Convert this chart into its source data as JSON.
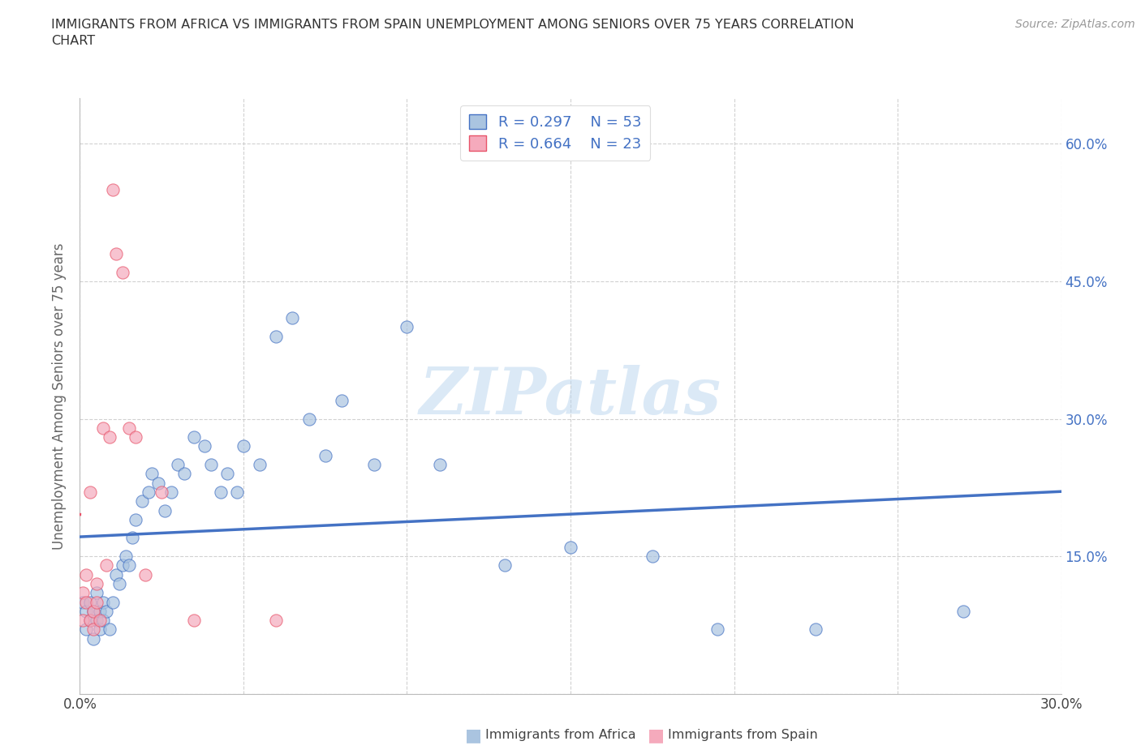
{
  "title": "IMMIGRANTS FROM AFRICA VS IMMIGRANTS FROM SPAIN UNEMPLOYMENT AMONG SENIORS OVER 75 YEARS CORRELATION\nCHART",
  "source_text": "Source: ZipAtlas.com",
  "ylabel": "Unemployment Among Seniors over 75 years",
  "xlim": [
    0.0,
    0.3
  ],
  "ylim": [
    0.0,
    0.65
  ],
  "xticks": [
    0.0,
    0.05,
    0.1,
    0.15,
    0.2,
    0.25,
    0.3
  ],
  "yticks": [
    0.0,
    0.15,
    0.3,
    0.45,
    0.6
  ],
  "xticklabels": [
    "0.0%",
    "",
    "",
    "",
    "",
    "",
    "30.0%"
  ],
  "yticklabels_right": [
    "",
    "15.0%",
    "30.0%",
    "45.0%",
    "60.0%"
  ],
  "watermark": "ZIPatlas",
  "legend_r1": "R = 0.297",
  "legend_n1": "N = 53",
  "legend_r2": "R = 0.664",
  "legend_n2": "N = 23",
  "color_africa": "#aac4e0",
  "color_spain": "#f5aabc",
  "color_africa_line": "#4472c4",
  "color_spain_line": "#e8546a",
  "africa_x": [
    0.001,
    0.002,
    0.002,
    0.003,
    0.003,
    0.004,
    0.004,
    0.005,
    0.005,
    0.006,
    0.006,
    0.007,
    0.007,
    0.008,
    0.009,
    0.01,
    0.011,
    0.012,
    0.013,
    0.014,
    0.015,
    0.016,
    0.017,
    0.019,
    0.021,
    0.022,
    0.024,
    0.026,
    0.028,
    0.03,
    0.032,
    0.035,
    0.038,
    0.04,
    0.043,
    0.045,
    0.048,
    0.05,
    0.055,
    0.06,
    0.065,
    0.07,
    0.075,
    0.08,
    0.09,
    0.1,
    0.11,
    0.13,
    0.15,
    0.175,
    0.195,
    0.225,
    0.27
  ],
  "africa_y": [
    0.1,
    0.09,
    0.07,
    0.08,
    0.1,
    0.06,
    0.09,
    0.08,
    0.11,
    0.09,
    0.07,
    0.1,
    0.08,
    0.09,
    0.07,
    0.1,
    0.13,
    0.12,
    0.14,
    0.15,
    0.14,
    0.17,
    0.19,
    0.21,
    0.22,
    0.24,
    0.23,
    0.2,
    0.22,
    0.25,
    0.24,
    0.28,
    0.27,
    0.25,
    0.22,
    0.24,
    0.22,
    0.27,
    0.25,
    0.39,
    0.41,
    0.3,
    0.26,
    0.32,
    0.25,
    0.4,
    0.25,
    0.14,
    0.16,
    0.15,
    0.07,
    0.07,
    0.09
  ],
  "spain_x": [
    0.001,
    0.001,
    0.002,
    0.002,
    0.003,
    0.003,
    0.004,
    0.004,
    0.005,
    0.005,
    0.006,
    0.007,
    0.008,
    0.009,
    0.01,
    0.011,
    0.013,
    0.015,
    0.017,
    0.02,
    0.025,
    0.035,
    0.06
  ],
  "spain_y": [
    0.08,
    0.11,
    0.1,
    0.13,
    0.08,
    0.22,
    0.09,
    0.07,
    0.12,
    0.1,
    0.08,
    0.29,
    0.14,
    0.28,
    0.55,
    0.48,
    0.46,
    0.29,
    0.28,
    0.13,
    0.22,
    0.08,
    0.08
  ],
  "background_color": "#ffffff",
  "grid_color": "#cccccc"
}
